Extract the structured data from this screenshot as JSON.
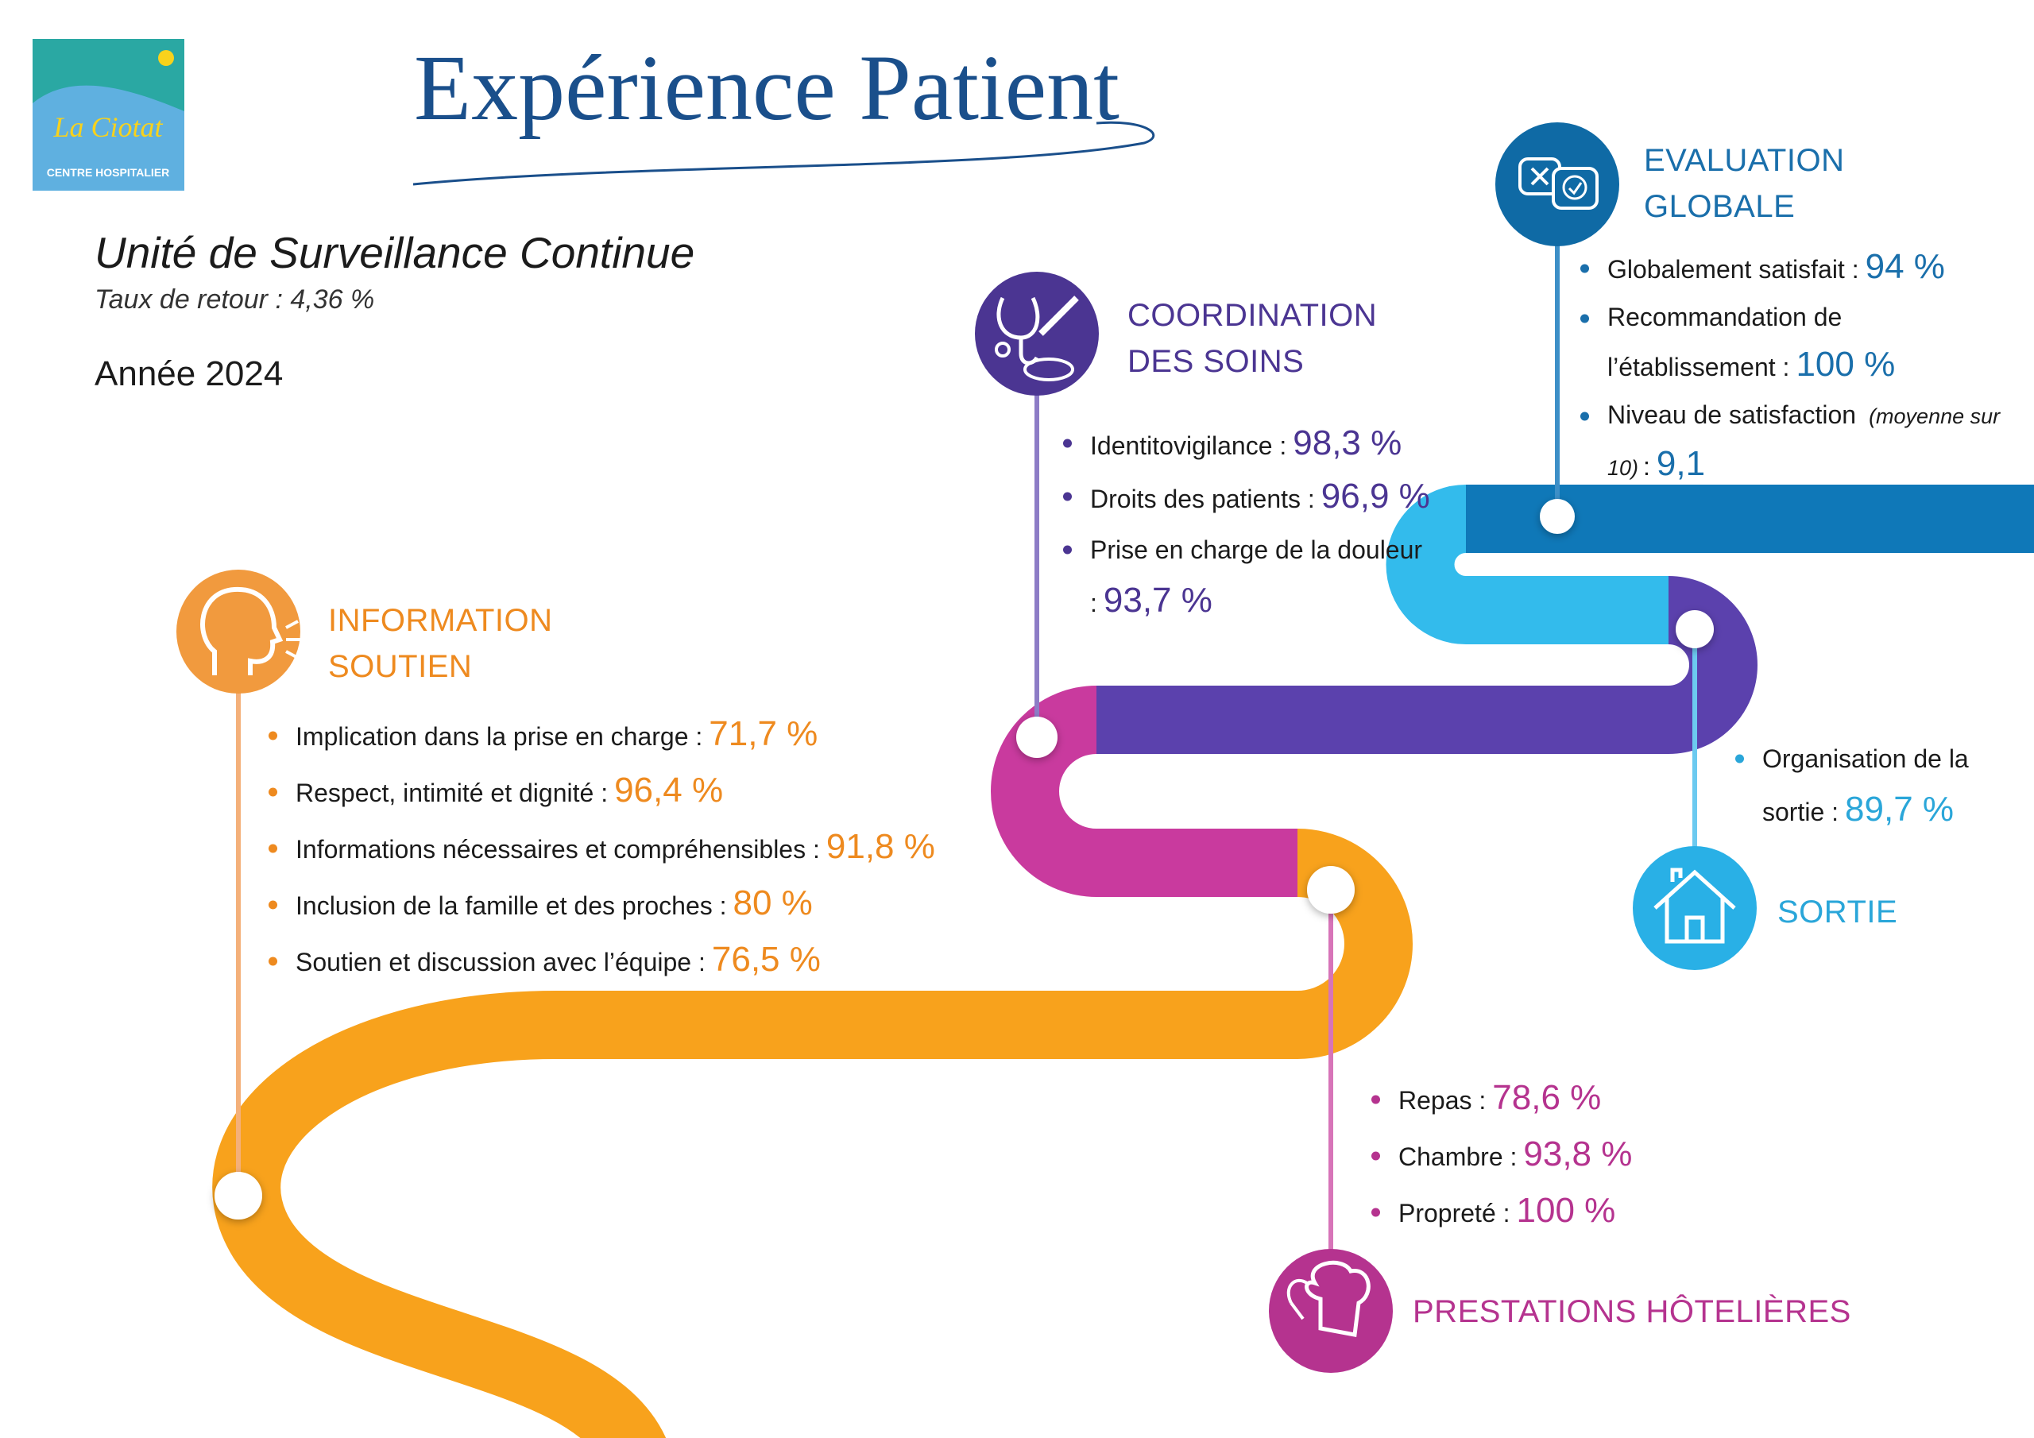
{
  "logo": {
    "text": "La Ciotat",
    "caption": "CENTRE HOSPITALIER"
  },
  "title": "Expérience Patient",
  "header": {
    "unit": "Unité de Surveillance Continue",
    "rate": "Taux de retour : 4,36 %",
    "year": "Année 2024"
  },
  "sections": [
    {
      "title": [
        "INFORMATION",
        "SOUTIEN"
      ],
      "items": [
        {
          "label": "Implication dans la prise en charge :",
          "value": "71,7 %"
        },
        {
          "label": "Respect, intimité et dignité :",
          "value": "96,4 %"
        },
        {
          "label": "Informations nécessaires et compréhensibles :",
          "value": "91,8 %"
        },
        {
          "label": "Inclusion de la famille et des proches :",
          "value": "80 %"
        },
        {
          "label": "Soutien et discussion avec l’équipe :",
          "value": "76,5 %"
        }
      ]
    },
    {
      "title": [
        "COORDINATION",
        "DES SOINS"
      ],
      "items": [
        {
          "label": "Identitovigilance :",
          "value": "98,3 %"
        },
        {
          "label": "Droits des patients :",
          "value": "96,9 %"
        },
        {
          "label": "Prise en charge de la douleur :",
          "value": "93,7 %"
        }
      ]
    },
    {
      "title": [
        "EVALUATION",
        "GLOBALE"
      ],
      "items": [
        {
          "label": "Globalement satisfait :",
          "value": "94 %"
        },
        {
          "label": "Recommandation de l’établissement :",
          "value": "100 %"
        },
        {
          "label": "Niveau de satisfaction",
          "note": "(moyenne sur 10)",
          "suffix": ":",
          "value": "9,1"
        }
      ]
    },
    {
      "title": [
        "SORTIE"
      ],
      "items": [
        {
          "label": "Organisation de la sortie :",
          "value": "89,7 %"
        }
      ]
    },
    {
      "title": [
        "PRESTATIONS HÔTELIÈRES"
      ],
      "items": [
        {
          "label": "Repas :",
          "value": "78,6 %"
        },
        {
          "label": "Chambre :",
          "value": "93,8 %"
        },
        {
          "label": "Propreté :",
          "value": "100 %"
        }
      ]
    }
  ]
}
